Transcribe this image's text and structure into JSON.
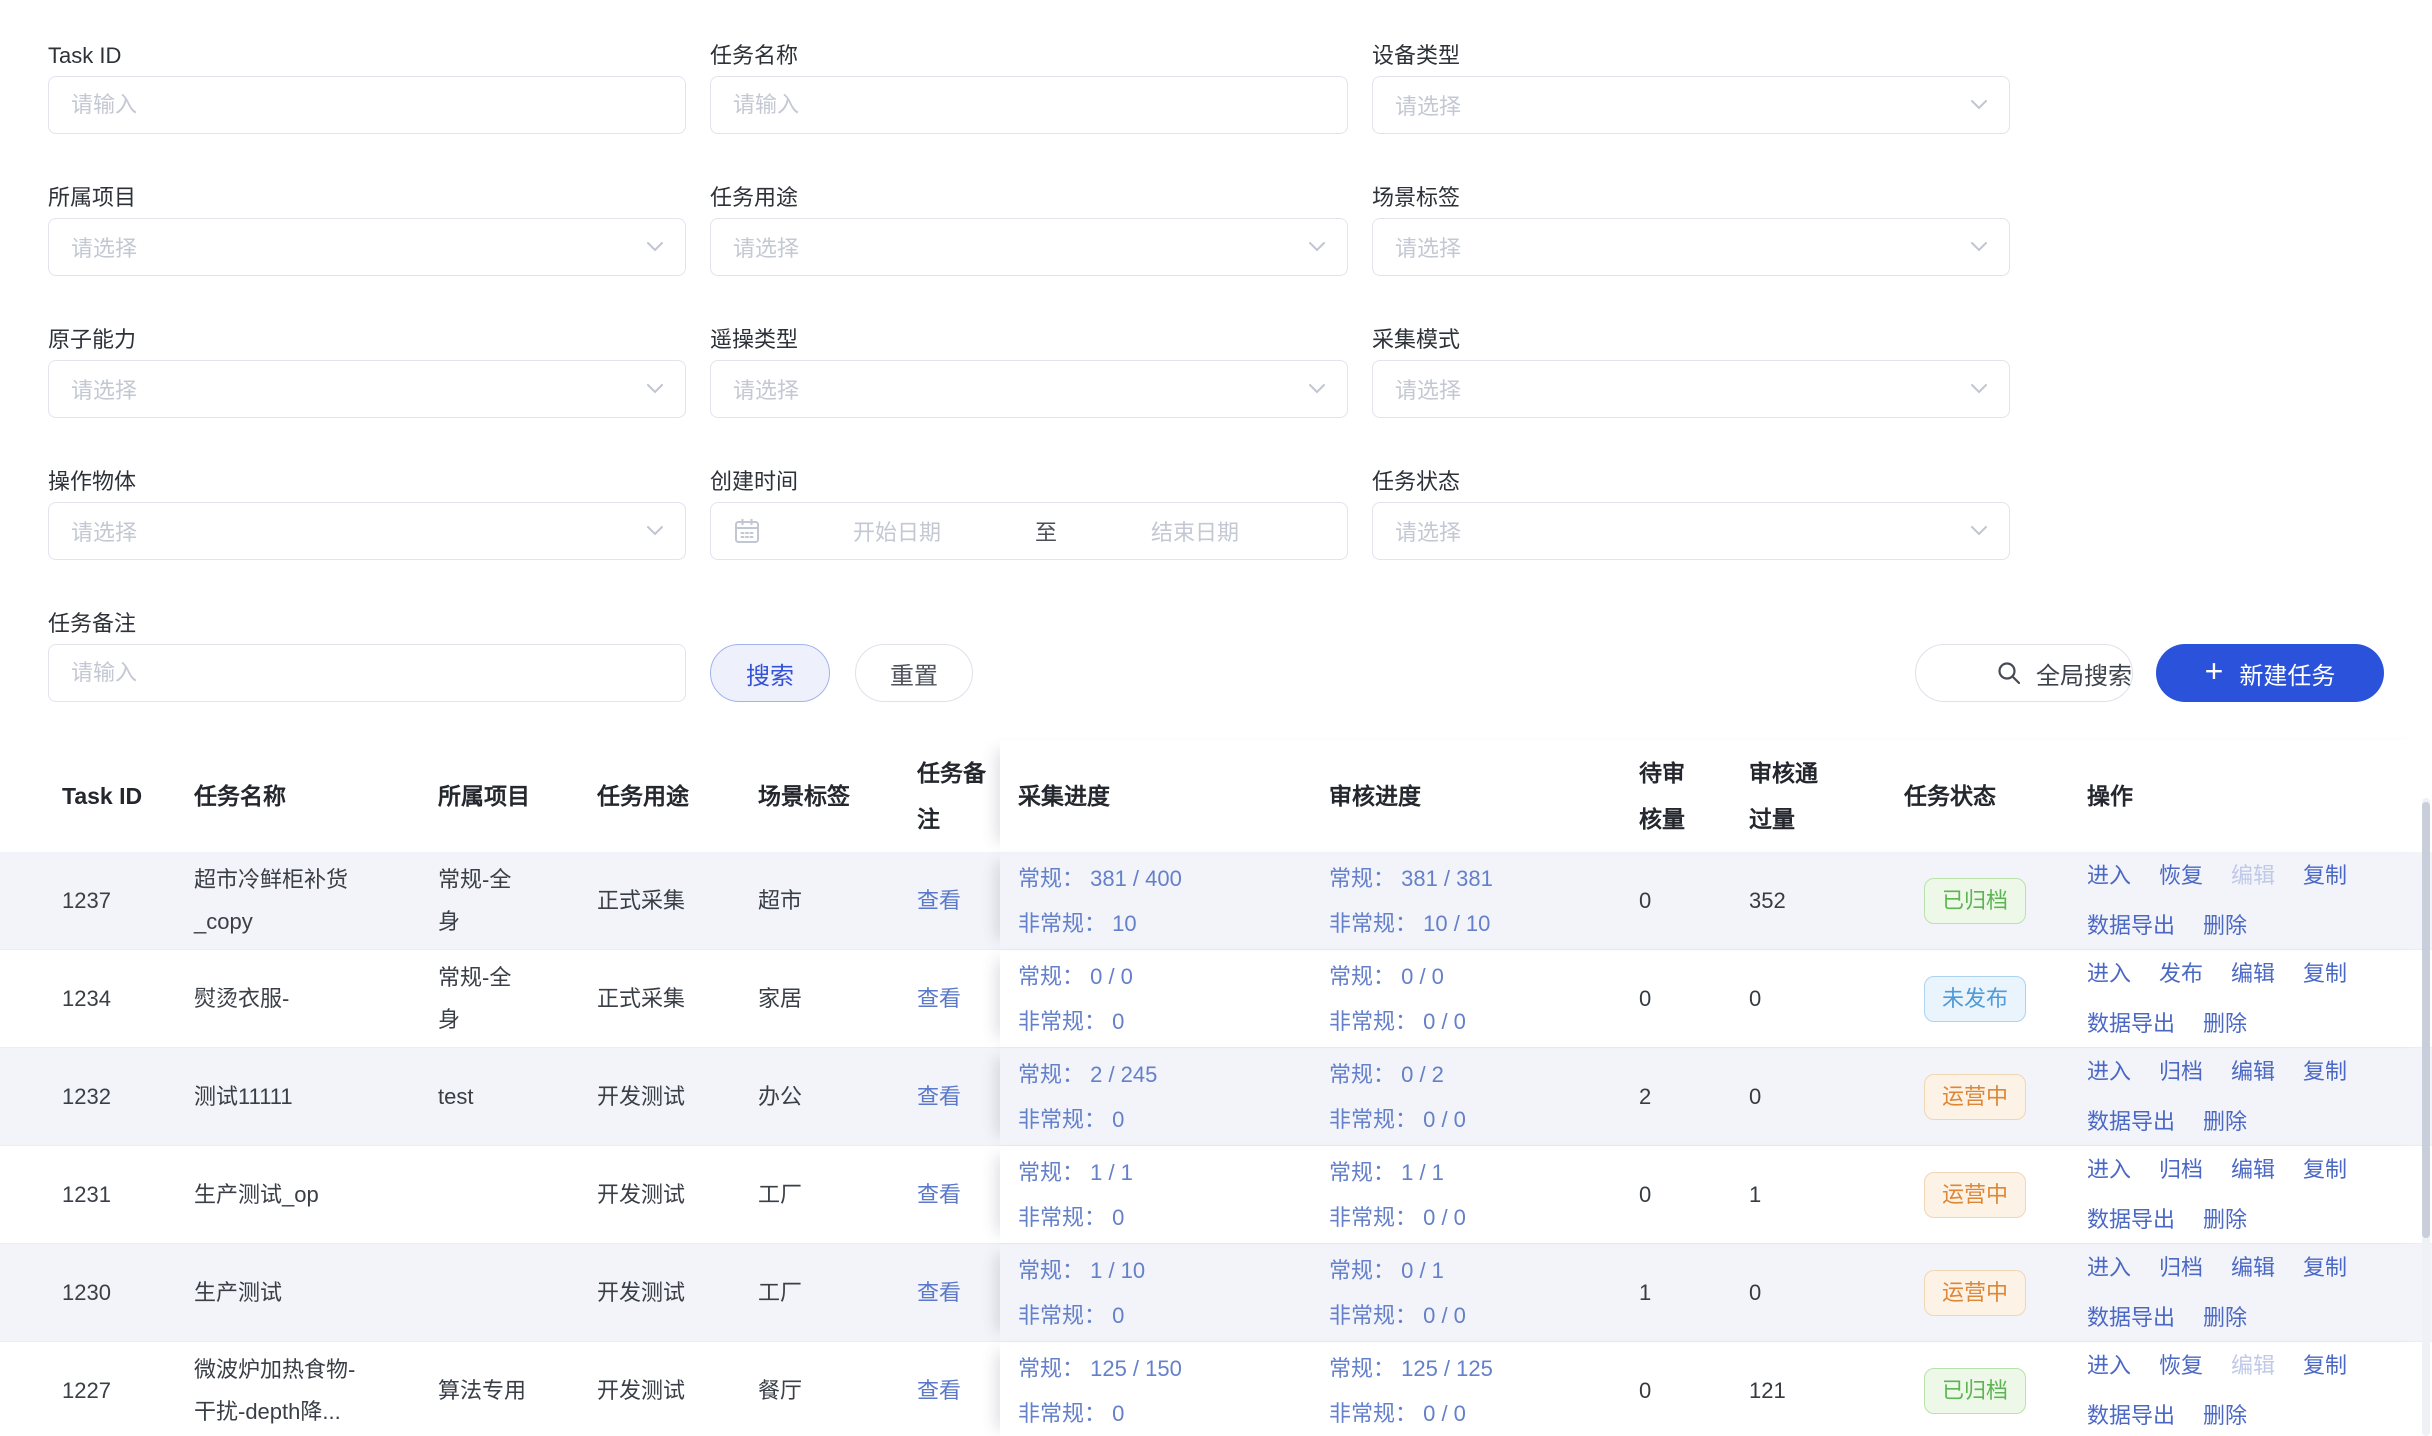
{
  "form": {
    "fields": [
      {
        "label": "Task ID",
        "type": "input",
        "placeholder": "请输入"
      },
      {
        "label": "任务名称",
        "type": "input",
        "placeholder": "请输入"
      },
      {
        "label": "设备类型",
        "type": "select",
        "placeholder": "请选择"
      },
      {
        "label": "所属项目",
        "type": "select",
        "placeholder": "请选择"
      },
      {
        "label": "任务用途",
        "type": "select",
        "placeholder": "请选择"
      },
      {
        "label": "场景标签",
        "type": "select",
        "placeholder": "请选择"
      },
      {
        "label": "原子能力",
        "type": "select",
        "placeholder": "请选择"
      },
      {
        "label": "遥操类型",
        "type": "select",
        "placeholder": "请选择"
      },
      {
        "label": "采集模式",
        "type": "select",
        "placeholder": "请选择"
      },
      {
        "label": "操作物体",
        "type": "select",
        "placeholder": "请选择"
      },
      {
        "label": "创建时间",
        "type": "daterange",
        "start_placeholder": "开始日期",
        "separator": "至",
        "end_placeholder": "结束日期"
      },
      {
        "label": "任务状态",
        "type": "select",
        "placeholder": "请选择"
      }
    ],
    "remark_field": {
      "label": "任务备注",
      "type": "input",
      "placeholder": "请输入"
    },
    "search_button": "搜索",
    "reset_button": "重置"
  },
  "toolbar": {
    "global_search_label": "全局搜索",
    "new_task_label": "新建任务",
    "new_task_plus": "+"
  },
  "table": {
    "columns": [
      "Task ID",
      "任务名称",
      "所属项目",
      "任务用途",
      "场景标签",
      "任务备注",
      "采集进度",
      "审核进度",
      "待审核量",
      "审核通过量",
      "任务状态",
      "操作"
    ],
    "progress_labels": {
      "regular": "常规：",
      "irregular": "非常规："
    },
    "view_link": "查看",
    "rows": [
      {
        "id": "1237",
        "name": "超市冷鲜柜补货_copy",
        "project": "常规-全身",
        "purpose": "正式采集",
        "scene": "超市",
        "collect": {
          "regular": "381 / 400",
          "irregular": "10"
        },
        "review": {
          "regular": "381 / 381",
          "irregular": "10 / 10"
        },
        "pending": "0",
        "passed": "352",
        "status": {
          "label": "已归档",
          "type": "archived"
        },
        "actions_line1": [
          {
            "label": "进入"
          },
          {
            "label": "恢复"
          },
          {
            "label": "编辑",
            "disabled": true
          },
          {
            "label": "复制"
          }
        ],
        "actions_line2": [
          {
            "label": "数据导出"
          },
          {
            "label": "删除"
          }
        ]
      },
      {
        "id": "1234",
        "name": "熨烫衣服-",
        "project": "常规-全身",
        "purpose": "正式采集",
        "scene": "家居",
        "collect": {
          "regular": "0 / 0",
          "irregular": "0"
        },
        "review": {
          "regular": "0 / 0",
          "irregular": "0 / 0"
        },
        "pending": "0",
        "passed": "0",
        "status": {
          "label": "未发布",
          "type": "unpublished"
        },
        "actions_line1": [
          {
            "label": "进入"
          },
          {
            "label": "发布"
          },
          {
            "label": "编辑"
          },
          {
            "label": "复制"
          }
        ],
        "actions_line2": [
          {
            "label": "数据导出"
          },
          {
            "label": "删除"
          }
        ]
      },
      {
        "id": "1232",
        "name": "测试11111",
        "project": "test",
        "purpose": "开发测试",
        "scene": "办公",
        "collect": {
          "regular": "2 / 245",
          "irregular": "0"
        },
        "review": {
          "regular": "0 / 2",
          "irregular": "0 / 0"
        },
        "pending": "2",
        "passed": "0",
        "status": {
          "label": "运营中",
          "type": "operating"
        },
        "actions_line1": [
          {
            "label": "进入"
          },
          {
            "label": "归档"
          },
          {
            "label": "编辑"
          },
          {
            "label": "复制"
          }
        ],
        "actions_line2": [
          {
            "label": "数据导出"
          },
          {
            "label": "删除"
          }
        ]
      },
      {
        "id": "1231",
        "name": "生产测试_op",
        "project": "",
        "purpose": "开发测试",
        "scene": "工厂",
        "collect": {
          "regular": "1 / 1",
          "irregular": "0"
        },
        "review": {
          "regular": "1 / 1",
          "irregular": "0 / 0"
        },
        "pending": "0",
        "passed": "1",
        "status": {
          "label": "运营中",
          "type": "operating"
        },
        "actions_line1": [
          {
            "label": "进入"
          },
          {
            "label": "归档"
          },
          {
            "label": "编辑"
          },
          {
            "label": "复制"
          }
        ],
        "actions_line2": [
          {
            "label": "数据导出"
          },
          {
            "label": "删除"
          }
        ]
      },
      {
        "id": "1230",
        "name": "生产测试",
        "project": "",
        "purpose": "开发测试",
        "scene": "工厂",
        "collect": {
          "regular": "1 / 10",
          "irregular": "0"
        },
        "review": {
          "regular": "0 / 1",
          "irregular": "0 / 0"
        },
        "pending": "1",
        "passed": "0",
        "status": {
          "label": "运营中",
          "type": "operating"
        },
        "actions_line1": [
          {
            "label": "进入"
          },
          {
            "label": "归档"
          },
          {
            "label": "编辑"
          },
          {
            "label": "复制"
          }
        ],
        "actions_line2": [
          {
            "label": "数据导出"
          },
          {
            "label": "删除"
          }
        ]
      },
      {
        "id": "1227",
        "name": "微波炉加热食物-干扰-depth降...",
        "project": "算法专用",
        "purpose": "开发测试",
        "scene": "餐厅",
        "collect": {
          "regular": "125 / 150",
          "irregular": "0"
        },
        "review": {
          "regular": "125 / 125",
          "irregular": "0 / 0"
        },
        "pending": "0",
        "passed": "121",
        "status": {
          "label": "已归档",
          "type": "archived"
        },
        "actions_line1": [
          {
            "label": "进入"
          },
          {
            "label": "恢复"
          },
          {
            "label": "编辑",
            "disabled": true
          },
          {
            "label": "复制"
          }
        ],
        "actions_line2": [
          {
            "label": "数据导出"
          },
          {
            "label": "删除"
          }
        ]
      }
    ]
  },
  "icons": [
    "chevron-down-icon",
    "calendar-icon",
    "search-icon",
    "plus-icon"
  ],
  "colors": {
    "accent_blue": "#2b52db",
    "search_button_bg": "#eef1fc",
    "search_button_border": "#a2b3ec",
    "search_button_text": "#3352d6",
    "link_blue": "#4b68c5",
    "progress_blue": "#6480ca",
    "stripe_row": "#f2f4f9",
    "badge_archived_text": "#5cb452",
    "badge_archived_bg": "#eef8e9",
    "badge_unpublished_text": "#4f9ad7",
    "badge_unpublished_bg": "#e9f4fd",
    "badge_operating_text": "#dd8737",
    "badge_operating_bg": "#fcf2e5"
  }
}
